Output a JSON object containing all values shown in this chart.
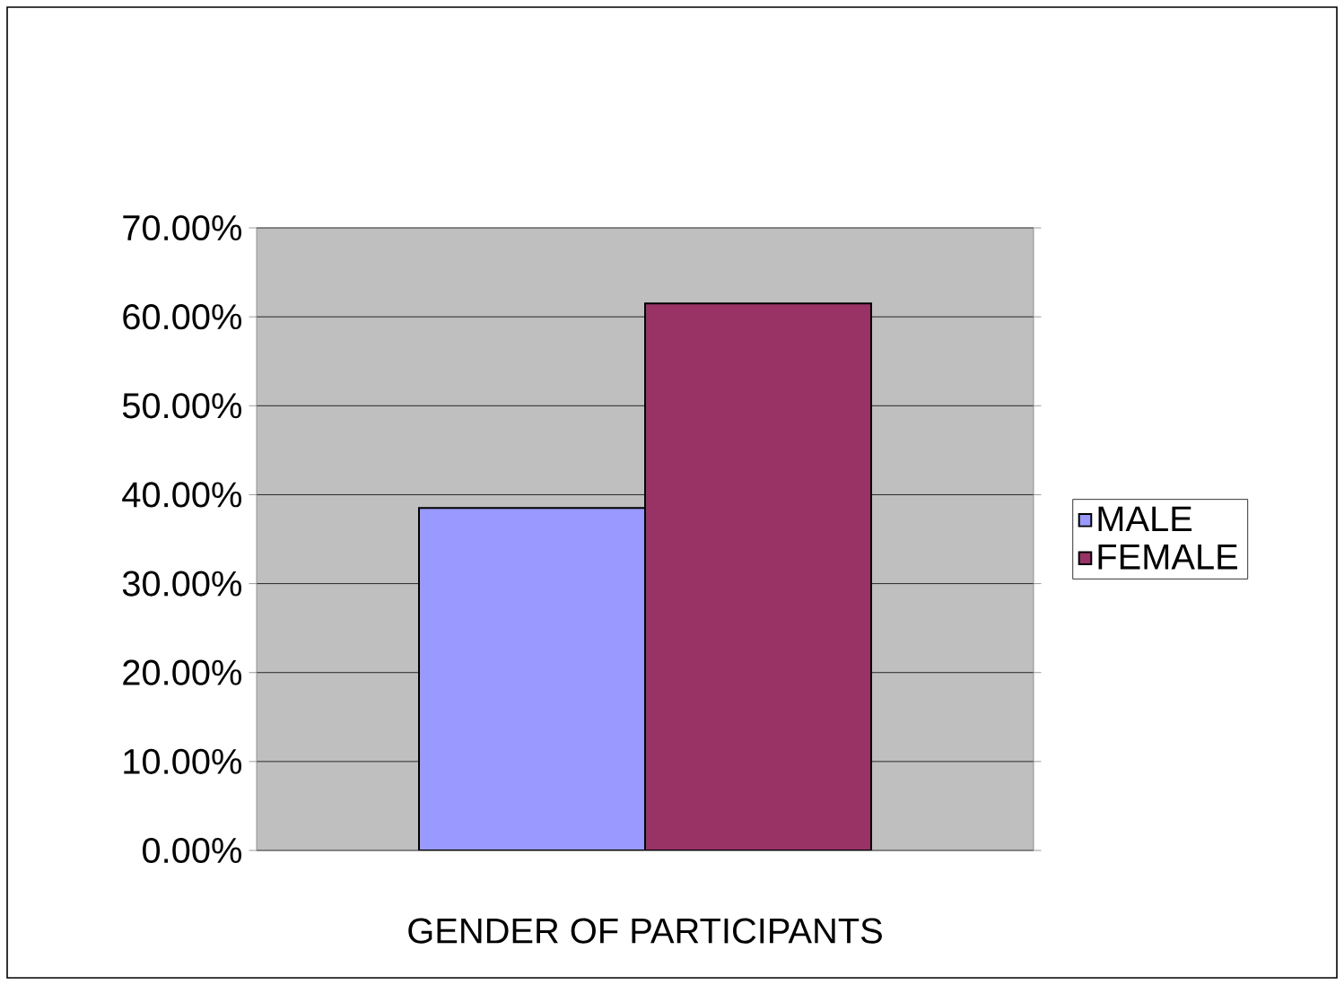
{
  "chart_data": {
    "type": "bar",
    "categories": [
      "GENDER OF PARTICIPANTS"
    ],
    "series": [
      {
        "name": "MALE",
        "color": "#9999ff",
        "values": [
          38.5
        ]
      },
      {
        "name": "FEMALE",
        "color": "#993366",
        "values": [
          61.5
        ]
      }
    ],
    "ylim": [
      0,
      70
    ],
    "yticks": [
      {
        "value": 0,
        "label": "0.00%"
      },
      {
        "value": 10,
        "label": "10.00%"
      },
      {
        "value": 20,
        "label": "20.00%"
      },
      {
        "value": 30,
        "label": "30.00%"
      },
      {
        "value": 40,
        "label": "40.00%"
      },
      {
        "value": 50,
        "label": "50.00%"
      },
      {
        "value": 60,
        "label": "60.00%"
      },
      {
        "value": 70,
        "label": "70.00%"
      }
    ],
    "grid": "y",
    "legend": "right"
  }
}
